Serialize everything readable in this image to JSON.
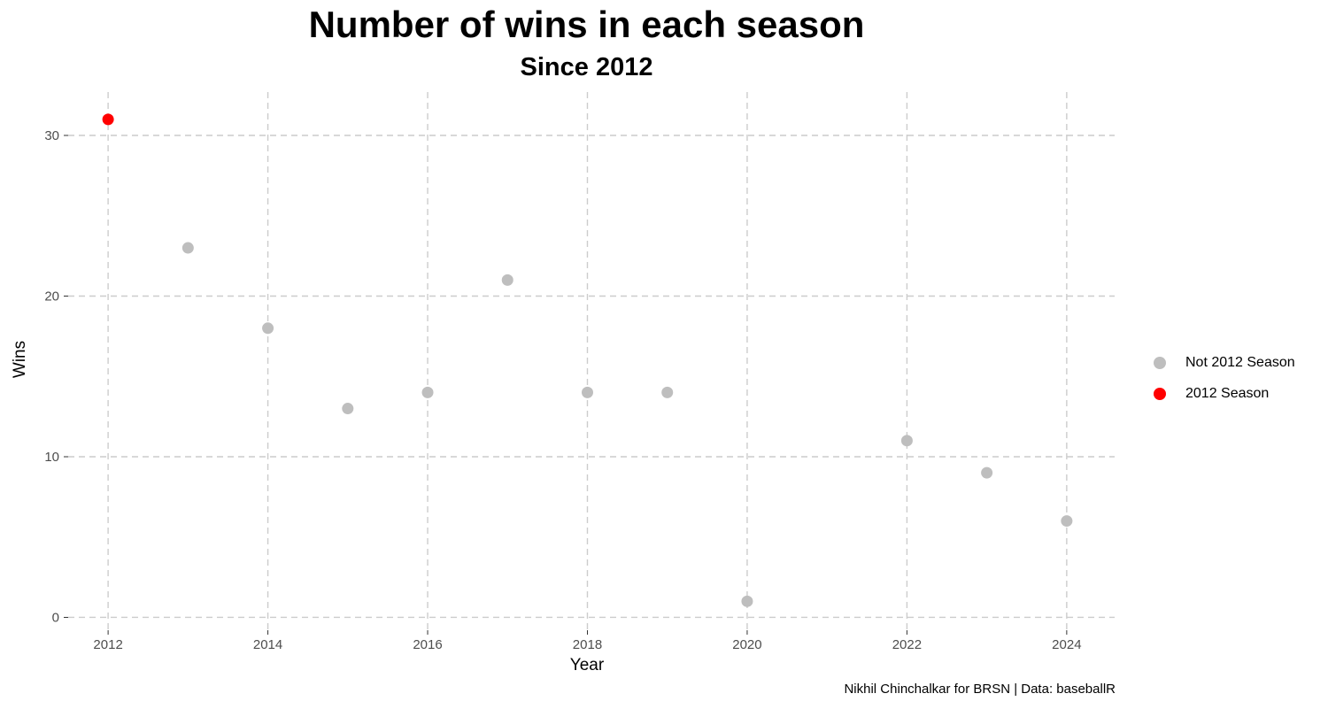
{
  "chart_data": {
    "type": "scatter",
    "title": "Number of wins in each season",
    "subtitle": "Since 2012",
    "xlabel": "Year",
    "ylabel": "Wins",
    "xlim": [
      2011.5,
      2024.6
    ],
    "ylim": [
      -0.8,
      32.7
    ],
    "x_ticks": [
      2012,
      2014,
      2016,
      2018,
      2020,
      2022,
      2024
    ],
    "y_ticks": [
      0,
      10,
      20,
      30
    ],
    "grid": true,
    "legend_position": "right",
    "caption": "Nikhil Chinchalkar for BRSN | Data: baseballR",
    "series": [
      {
        "name": "Not 2012 Season",
        "color": "#bebebe",
        "x": [
          2013,
          2014,
          2015,
          2016,
          2017,
          2018,
          2019,
          2020,
          2022,
          2023,
          2024
        ],
        "y": [
          23,
          18,
          13,
          14,
          21,
          14,
          14,
          1,
          11,
          9,
          6
        ]
      },
      {
        "name": "2012 Season",
        "color": "#ff0000",
        "x": [
          2012
        ],
        "y": [
          31
        ]
      }
    ]
  }
}
